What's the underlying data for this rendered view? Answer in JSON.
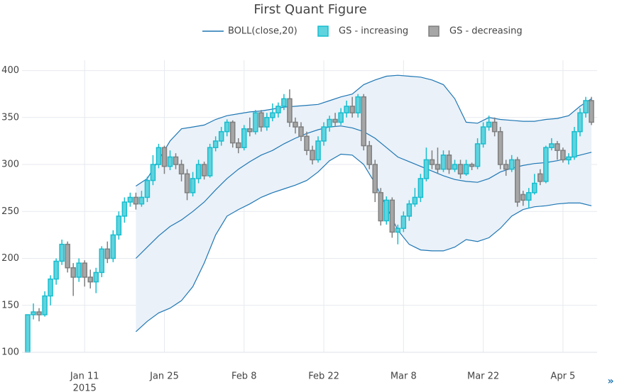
{
  "chart_data": {
    "type": "candlestick",
    "title": "First Quant Figure",
    "nav": "»",
    "x": [
      "2015-01-01",
      "2015-01-02",
      "2015-01-03",
      "2015-01-04",
      "2015-01-05",
      "2015-01-06",
      "2015-01-07",
      "2015-01-08",
      "2015-01-09",
      "2015-01-10",
      "2015-01-11",
      "2015-01-12",
      "2015-01-13",
      "2015-01-14",
      "2015-01-15",
      "2015-01-16",
      "2015-01-17",
      "2015-01-18",
      "2015-01-19",
      "2015-01-20",
      "2015-01-21",
      "2015-01-22",
      "2015-01-23",
      "2015-01-24",
      "2015-01-25",
      "2015-01-26",
      "2015-01-27",
      "2015-01-28",
      "2015-01-29",
      "2015-01-30",
      "2015-01-31",
      "2015-02-01",
      "2015-02-02",
      "2015-02-03",
      "2015-02-04",
      "2015-02-05",
      "2015-02-06",
      "2015-02-07",
      "2015-02-08",
      "2015-02-09",
      "2015-02-10",
      "2015-02-11",
      "2015-02-12",
      "2015-02-13",
      "2015-02-14",
      "2015-02-15",
      "2015-02-16",
      "2015-02-17",
      "2015-02-18",
      "2015-02-19",
      "2015-02-20",
      "2015-02-21",
      "2015-02-22",
      "2015-02-23",
      "2015-02-24",
      "2015-02-25",
      "2015-02-26",
      "2015-02-27",
      "2015-02-28",
      "2015-03-01",
      "2015-03-02",
      "2015-03-03",
      "2015-03-04",
      "2015-03-05",
      "2015-03-06",
      "2015-03-07",
      "2015-03-08",
      "2015-03-09",
      "2015-03-10",
      "2015-03-11",
      "2015-03-12",
      "2015-03-13",
      "2015-03-14",
      "2015-03-15",
      "2015-03-16",
      "2015-03-17",
      "2015-03-18",
      "2015-03-19",
      "2015-03-20",
      "2015-03-21",
      "2015-03-22",
      "2015-03-23",
      "2015-03-24",
      "2015-03-25",
      "2015-03-26",
      "2015-03-27",
      "2015-03-28",
      "2015-03-29",
      "2015-03-30",
      "2015-03-31",
      "2015-04-01",
      "2015-04-02",
      "2015-04-03",
      "2015-04-04",
      "2015-04-05",
      "2015-04-06",
      "2015-04-07",
      "2015-04-08",
      "2015-04-09",
      "2015-04-10"
    ],
    "open": [
      100,
      140,
      143,
      140,
      160,
      178,
      197,
      215,
      190,
      180,
      195,
      180,
      175,
      185,
      210,
      200,
      225,
      245,
      260,
      265,
      258,
      265,
      283,
      300,
      318,
      298,
      308,
      300,
      290,
      270,
      285,
      300,
      288,
      318,
      325,
      335,
      345,
      323,
      318,
      338,
      335,
      355,
      340,
      350,
      355,
      362,
      370,
      345,
      340,
      330,
      315,
      305,
      325,
      340,
      348,
      345,
      355,
      362,
      355,
      372,
      320,
      300,
      270,
      240,
      262,
      228,
      232,
      245,
      258,
      265,
      285,
      305,
      300,
      295,
      310,
      295,
      300,
      290,
      300,
      298,
      322,
      340,
      345,
      335,
      300,
      295,
      305,
      268,
      262,
      270,
      290,
      282,
      318,
      322,
      315,
      305,
      308,
      335,
      355,
      368
    ],
    "high": [
      140,
      152,
      147,
      165,
      182,
      200,
      220,
      218,
      195,
      200,
      198,
      188,
      190,
      213,
      218,
      230,
      250,
      265,
      270,
      270,
      272,
      287,
      310,
      322,
      320,
      315,
      312,
      305,
      295,
      292,
      305,
      303,
      322,
      330,
      340,
      348,
      347,
      328,
      342,
      350,
      358,
      358,
      355,
      365,
      366,
      375,
      380,
      350,
      345,
      335,
      320,
      330,
      345,
      352,
      355,
      360,
      368,
      372,
      375,
      375,
      325,
      305,
      275,
      266,
      265,
      236,
      250,
      262,
      275,
      290,
      318,
      315,
      318,
      315,
      315,
      305,
      305,
      305,
      302,
      328,
      345,
      352,
      350,
      340,
      305,
      310,
      308,
      272,
      275,
      290,
      295,
      320,
      328,
      325,
      318,
      312,
      340,
      360,
      372,
      372
    ],
    "low": [
      100,
      135,
      133,
      138,
      150,
      172,
      193,
      185,
      160,
      175,
      170,
      168,
      163,
      180,
      195,
      196,
      220,
      238,
      255,
      252,
      255,
      260,
      278,
      296,
      290,
      294,
      295,
      282,
      262,
      266,
      280,
      284,
      286,
      314,
      320,
      330,
      318,
      312,
      315,
      330,
      332,
      335,
      336,
      346,
      350,
      358,
      340,
      333,
      325,
      310,
      300,
      302,
      320,
      335,
      340,
      342,
      350,
      350,
      350,
      315,
      295,
      260,
      235,
      236,
      222,
      215,
      228,
      240,
      255,
      260,
      282,
      295,
      290,
      292,
      290,
      292,
      285,
      288,
      294,
      295,
      318,
      336,
      330,
      295,
      288,
      292,
      255,
      256,
      253,
      268,
      278,
      280,
      315,
      305,
      302,
      300,
      305,
      330,
      350,
      342
    ],
    "close": [
      140,
      143,
      140,
      160,
      178,
      197,
      215,
      190,
      180,
      195,
      180,
      175,
      185,
      210,
      200,
      225,
      245,
      260,
      265,
      258,
      265,
      283,
      300,
      318,
      298,
      308,
      300,
      290,
      270,
      285,
      300,
      288,
      318,
      325,
      335,
      345,
      323,
      318,
      338,
      335,
      355,
      340,
      350,
      355,
      362,
      370,
      345,
      340,
      330,
      315,
      305,
      325,
      340,
      348,
      345,
      355,
      362,
      355,
      372,
      320,
      300,
      270,
      240,
      262,
      228,
      232,
      245,
      258,
      265,
      285,
      305,
      300,
      295,
      310,
      295,
      300,
      290,
      300,
      298,
      322,
      340,
      345,
      335,
      300,
      295,
      305,
      260,
      262,
      270,
      280,
      282,
      318,
      322,
      315,
      305,
      308,
      335,
      355,
      368,
      345
    ],
    "increasing": {
      "name": "GS - increasing",
      "color": "#17becf",
      "fill": "#5fd3de"
    },
    "decreasing": {
      "name": "GS - decreasing",
      "color": "#7f7f7f",
      "fill": "#a6a6a6"
    },
    "boll": {
      "name": "BOLL(close,20)",
      "color": "#1f77b4",
      "fill": "#eaf1f8",
      "x": [
        "2015-01-20",
        "2015-01-22",
        "2015-01-24",
        "2015-01-26",
        "2015-01-28",
        "2015-01-30",
        "2015-02-01",
        "2015-02-03",
        "2015-02-05",
        "2015-02-07",
        "2015-02-09",
        "2015-02-11",
        "2015-02-13",
        "2015-02-15",
        "2015-02-17",
        "2015-02-19",
        "2015-02-21",
        "2015-02-23",
        "2015-02-25",
        "2015-02-27",
        "2015-03-01",
        "2015-03-03",
        "2015-03-05",
        "2015-03-07",
        "2015-03-09",
        "2015-03-11",
        "2015-03-13",
        "2015-03-15",
        "2015-03-17",
        "2015-03-19",
        "2015-03-21",
        "2015-03-23",
        "2015-03-25",
        "2015-03-27",
        "2015-03-29",
        "2015-03-31",
        "2015-04-02",
        "2015-04-04",
        "2015-04-06",
        "2015-04-08",
        "2015-04-10"
      ],
      "upper": [
        277,
        285,
        305,
        325,
        338,
        340,
        342,
        348,
        352,
        354,
        356,
        357,
        359,
        361,
        362,
        363,
        364,
        368,
        372,
        375,
        385,
        390,
        394,
        395,
        394,
        393,
        390,
        385,
        370,
        345,
        344,
        350,
        348,
        347,
        346,
        346,
        348,
        349,
        352,
        362,
        370
      ],
      "mid": [
        200,
        212,
        224,
        234,
        241,
        250,
        260,
        273,
        285,
        295,
        303,
        310,
        315,
        322,
        328,
        333,
        337,
        340,
        341,
        339,
        335,
        328,
        318,
        308,
        303,
        298,
        293,
        288,
        284,
        282,
        281,
        285,
        292,
        296,
        299,
        301,
        302,
        304,
        307,
        310,
        313
      ],
      "lower": [
        122,
        133,
        142,
        147,
        155,
        170,
        195,
        225,
        245,
        252,
        258,
        265,
        270,
        274,
        278,
        283,
        292,
        304,
        311,
        310,
        300,
        280,
        255,
        230,
        215,
        209,
        208,
        208,
        212,
        220,
        218,
        222,
        232,
        245,
        252,
        255,
        256,
        258,
        259,
        259,
        256
      ]
    },
    "xlim": [
      "2014-12-31",
      "2015-04-11"
    ],
    "xticks": [
      {
        "value": "2015-01-11",
        "label": "Jan 11",
        "sublabel": "2015"
      },
      {
        "value": "2015-01-25",
        "label": "Jan 25"
      },
      {
        "value": "2015-02-08",
        "label": "Feb 8"
      },
      {
        "value": "2015-02-22",
        "label": "Feb 22"
      },
      {
        "value": "2015-03-08",
        "label": "Mar 8"
      },
      {
        "value": "2015-03-22",
        "label": "Mar 22"
      },
      {
        "value": "2015-04-05",
        "label": "Apr 5"
      }
    ],
    "ylim": [
      100,
      411
    ],
    "yticks": [
      100,
      150,
      200,
      250,
      300,
      350,
      400
    ],
    "grid": true
  }
}
